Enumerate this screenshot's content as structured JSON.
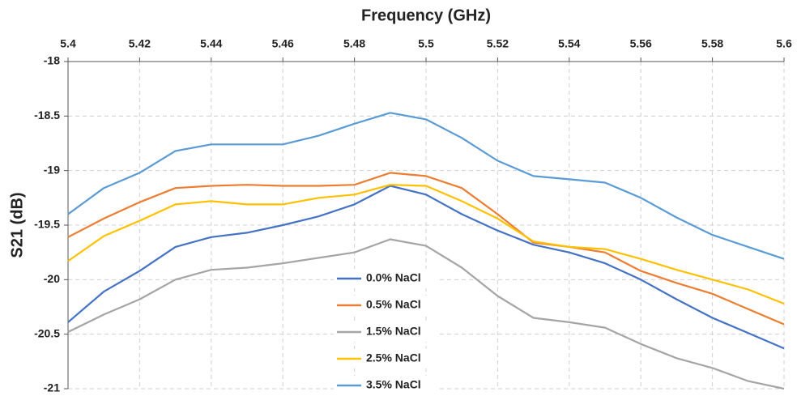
{
  "chart_data": {
    "type": "line",
    "xlabel": "Frequency (GHz)",
    "ylabel": "S21 (dB)",
    "x": [
      5.4,
      5.41,
      5.42,
      5.43,
      5.44,
      5.45,
      5.46,
      5.47,
      5.48,
      5.49,
      5.5,
      5.51,
      5.52,
      5.53,
      5.54,
      5.55,
      5.56,
      5.57,
      5.58,
      5.59,
      5.6
    ],
    "series": [
      {
        "name": "0.0% NaCl",
        "color": "#4472c4",
        "values": [
          -20.39,
          -20.11,
          -19.92,
          -19.7,
          -19.61,
          -19.57,
          -19.5,
          -19.42,
          -19.31,
          -19.14,
          -19.22,
          -19.4,
          -19.55,
          -19.68,
          -19.75,
          -19.85,
          -20.0,
          -20.18,
          -20.35,
          -20.49,
          -20.63
        ]
      },
      {
        "name": "0.5% NaCl",
        "color": "#ed7d31",
        "values": [
          -19.61,
          -19.44,
          -19.29,
          -19.16,
          -19.14,
          -19.13,
          -19.14,
          -19.14,
          -19.13,
          -19.02,
          -19.05,
          -19.16,
          -19.4,
          -19.66,
          -19.7,
          -19.75,
          -19.92,
          -20.03,
          -20.13,
          -20.27,
          -20.41
        ]
      },
      {
        "name": "1.5% NaCl",
        "color": "#a5a5a5",
        "values": [
          -20.48,
          -20.32,
          -20.18,
          -20.0,
          -19.91,
          -19.89,
          -19.85,
          -19.8,
          -19.75,
          -19.63,
          -19.69,
          -19.89,
          -20.15,
          -20.35,
          -20.39,
          -20.44,
          -20.59,
          -20.72,
          -20.81,
          -20.93,
          -21.0
        ]
      },
      {
        "name": "2.5% NaCl",
        "color": "#ffc000",
        "values": [
          -19.83,
          -19.6,
          -19.46,
          -19.31,
          -19.28,
          -19.31,
          -19.31,
          -19.25,
          -19.22,
          -19.13,
          -19.14,
          -19.28,
          -19.44,
          -19.65,
          -19.7,
          -19.72,
          -19.81,
          -19.91,
          -20.0,
          -20.09,
          -20.22
        ]
      },
      {
        "name": "3.5% NaCl",
        "color": "#5b9bd5",
        "values": [
          -19.4,
          -19.16,
          -19.02,
          -18.82,
          -18.76,
          -18.76,
          -18.76,
          -18.68,
          -18.57,
          -18.47,
          -18.53,
          -18.7,
          -18.91,
          -19.05,
          -19.08,
          -19.11,
          -19.25,
          -19.43,
          -19.59,
          -19.7,
          -19.81
        ]
      }
    ],
    "xlim": [
      5.4,
      5.6
    ],
    "xticks": [
      5.4,
      5.42,
      5.44,
      5.46,
      5.48,
      5.5,
      5.52,
      5.54,
      5.56,
      5.58,
      5.6
    ],
    "ylim": [
      -21,
      -18
    ],
    "yticks": [
      -21,
      -20.5,
      -20,
      -19.5,
      -19,
      -18.5,
      -18
    ],
    "grid": true,
    "legend": "center"
  }
}
